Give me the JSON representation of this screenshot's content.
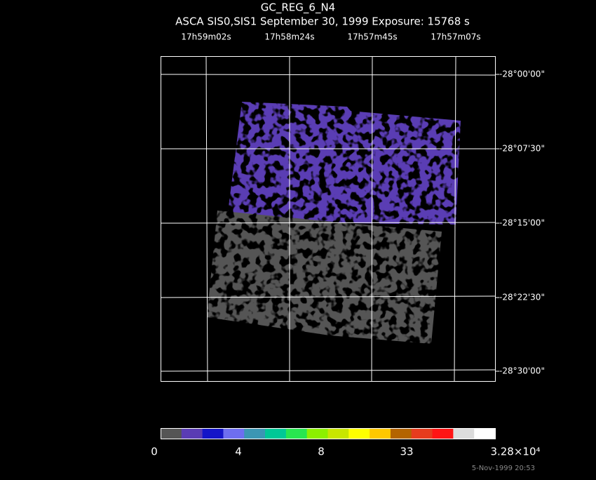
{
  "header": {
    "title": "GC_REG_6_N4",
    "subtitle": "ASCA SIS0,SIS1 September 30, 1999 Exposure: 15768 s"
  },
  "ra_labels": [
    "17h59m02s",
    "17h58m24s",
    "17h57m45s",
    "17h57m07s"
  ],
  "dec_labels": [
    "-28°00'00\"",
    "-28°07'30\"",
    "-28°15'00\"",
    "-28°22'30\"",
    "-28°30'00\""
  ],
  "colorbar": {
    "colors": [
      "#555555",
      "#5a3cb4",
      "#1414c8",
      "#6e6ef0",
      "#3c96b4",
      "#00c896",
      "#28e650",
      "#8cf000",
      "#c8e600",
      "#ffff00",
      "#ffc800",
      "#b46400",
      "#e63c1e",
      "#ff1414",
      "#dcdcdc",
      "#ffffff"
    ],
    "labels": [
      "0",
      "4",
      "8",
      "33",
      "3.28×10⁴"
    ]
  },
  "timestamp": "5-Nov-1999 20:53"
}
